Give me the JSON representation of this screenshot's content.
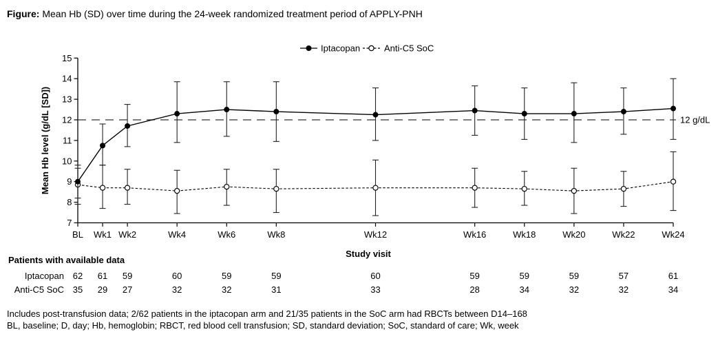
{
  "figure": {
    "title_prefix": "Figure:",
    "title_text": " Mean Hb (SD) over time during the 24-week randomized treatment period of APPLY-PNH"
  },
  "legend": [
    {
      "label": "Iptacopan",
      "marker": "filled-circle",
      "line": "solid"
    },
    {
      "label": "Anti-C5 SoC",
      "marker": "open-circle",
      "line": "dashed"
    }
  ],
  "chart_data": {
    "type": "line",
    "title": "Mean Hb (SD) over time during the 24-week randomized treatment period of APPLY-PNH",
    "xlabel": "Study visit",
    "ylabel": "Mean Hb level (g/dL [SD])",
    "ylim": [
      7,
      15
    ],
    "yticks": [
      7,
      8,
      9,
      10,
      11,
      12,
      13,
      14,
      15
    ],
    "grid": false,
    "legend_position": "top-center",
    "error_bars": "SD",
    "categories": [
      "BL",
      "Wk1",
      "Wk2",
      "Wk4",
      "Wk6",
      "Wk8",
      "Wk12",
      "Wk16",
      "Wk18",
      "Wk20",
      "Wk22",
      "Wk24"
    ],
    "x_weeks": [
      0,
      1,
      2,
      4,
      6,
      8,
      12,
      16,
      18,
      20,
      22,
      24
    ],
    "reference_line": {
      "y": 12,
      "label": "12 g/dL"
    },
    "series": [
      {
        "name": "Iptacopan",
        "marker": "filled-circle",
        "line": "solid",
        "mean": [
          9.0,
          10.75,
          11.7,
          12.3,
          12.5,
          12.4,
          12.25,
          12.45,
          12.3,
          12.3,
          12.4,
          12.55
        ],
        "upper": [
          9.65,
          11.8,
          12.75,
          13.85,
          13.85,
          13.85,
          13.55,
          13.65,
          13.55,
          13.8,
          13.55,
          14.0
        ],
        "lower": [
          8.2,
          9.8,
          10.7,
          10.9,
          11.2,
          10.95,
          11.0,
          11.25,
          11.05,
          10.9,
          11.3,
          11.05
        ]
      },
      {
        "name": "Anti-C5 SoC",
        "marker": "open-circle",
        "line": "dashed",
        "mean": [
          8.85,
          8.7,
          8.7,
          8.55,
          8.75,
          8.65,
          8.7,
          8.7,
          8.65,
          8.55,
          8.65,
          9.0
        ],
        "upper": [
          9.8,
          9.8,
          9.6,
          9.55,
          9.6,
          9.6,
          10.05,
          9.65,
          9.5,
          9.65,
          9.5,
          10.45
        ],
        "lower": [
          7.9,
          7.7,
          7.9,
          7.45,
          7.85,
          7.5,
          7.35,
          7.75,
          7.85,
          7.45,
          7.8,
          7.6
        ]
      }
    ]
  },
  "table": {
    "header": "Patients with available data",
    "rows": [
      {
        "label": "Iptacopan",
        "values": [
          62,
          61,
          59,
          60,
          59,
          59,
          60,
          59,
          59,
          59,
          57,
          61
        ]
      },
      {
        "label": "Anti-C5 SoC",
        "values": [
          35,
          29,
          27,
          32,
          32,
          31,
          33,
          28,
          34,
          32,
          32,
          34
        ]
      }
    ]
  },
  "footnotes": [
    "Includes post-transfusion data; 2/62 patients in the iptacopan arm and 21/35 patients in the SoC arm had RBCTs between D14–168",
    "BL, baseline; D, day; Hb, hemoglobin; RBCT, red blood cell transfusion; SD, standard deviation; SoC, standard of care; Wk, week"
  ],
  "colors": {
    "line": "#000000",
    "error_bar": "#222222",
    "reference_line": "#333333",
    "background": "#ffffff"
  }
}
